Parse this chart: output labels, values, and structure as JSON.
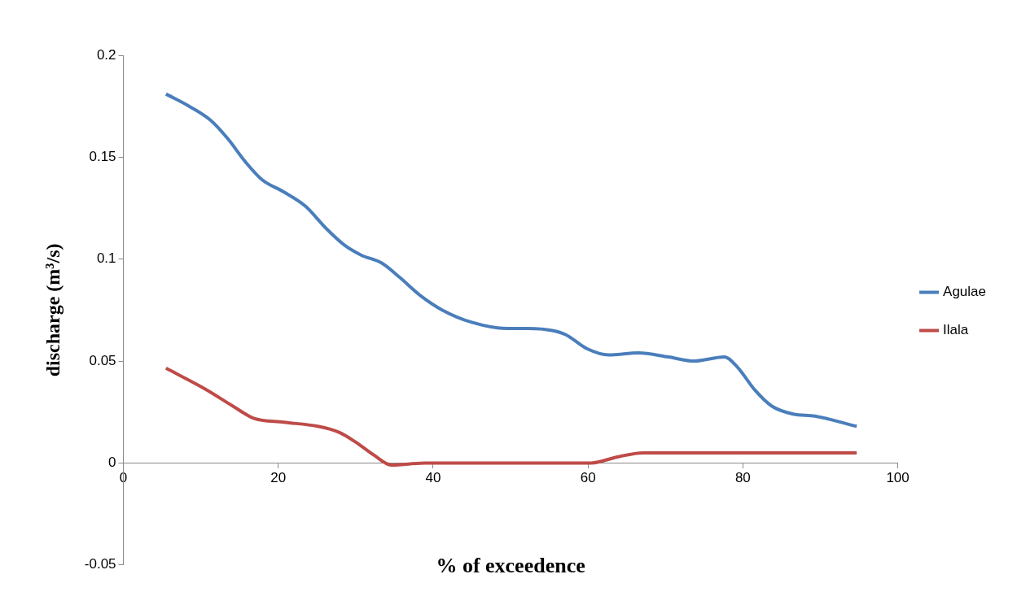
{
  "chart_data": {
    "type": "line",
    "xlabel": "% of exceedence",
    "ylabel": "discharge (m³/s)",
    "xlim": [
      0,
      100
    ],
    "xticks": [
      0,
      20,
      40,
      60,
      80,
      100
    ],
    "ylim": [
      -0.05,
      0.2
    ],
    "yticks": [
      -0.05,
      0,
      0.05,
      0.1,
      0.15,
      0.2
    ],
    "grid": false,
    "legend": "right",
    "marker": "none",
    "line_style": "solid",
    "series": [
      {
        "name": "Agulae",
        "color": "#4a7ebb",
        "x": [
          5.5,
          8.5,
          11.3,
          13.5,
          15.7,
          17.9,
          20.7,
          23.5,
          26.2,
          28.5,
          30.7,
          33.4,
          35.7,
          38.4,
          41.2,
          45.0,
          49.5,
          52.3,
          55.4,
          57.1,
          59.9,
          62.7,
          66.5,
          70.4,
          73.7,
          77.6,
          79.3,
          81.5,
          83.7,
          86.5,
          89.3,
          94.7
        ],
        "values": [
          0.181,
          0.175,
          0.168,
          0.159,
          0.148,
          0.139,
          0.133,
          0.126,
          0.115,
          0.107,
          0.102,
          0.098,
          0.091,
          0.082,
          0.075,
          0.069,
          0.066,
          0.066,
          0.065,
          0.063,
          0.056,
          0.053,
          0.054,
          0.052,
          0.05,
          0.052,
          0.047,
          0.036,
          0.028,
          0.024,
          0.023,
          0.018
        ]
      },
      {
        "name": "Ilala",
        "color": "#be4b48",
        "x": [
          5.5,
          10.7,
          14.1,
          16.8,
          20.7,
          25.1,
          27.9,
          30.1,
          32.3,
          34.6,
          39.0,
          57.1,
          60.4,
          63.8,
          67.1,
          94.7
        ],
        "values": [
          0.0465,
          0.036,
          0.028,
          0.022,
          0.02,
          0.018,
          0.015,
          0.01,
          0.004,
          -0.001,
          0,
          0,
          0,
          0.003,
          0.005,
          0.005
        ]
      }
    ]
  }
}
